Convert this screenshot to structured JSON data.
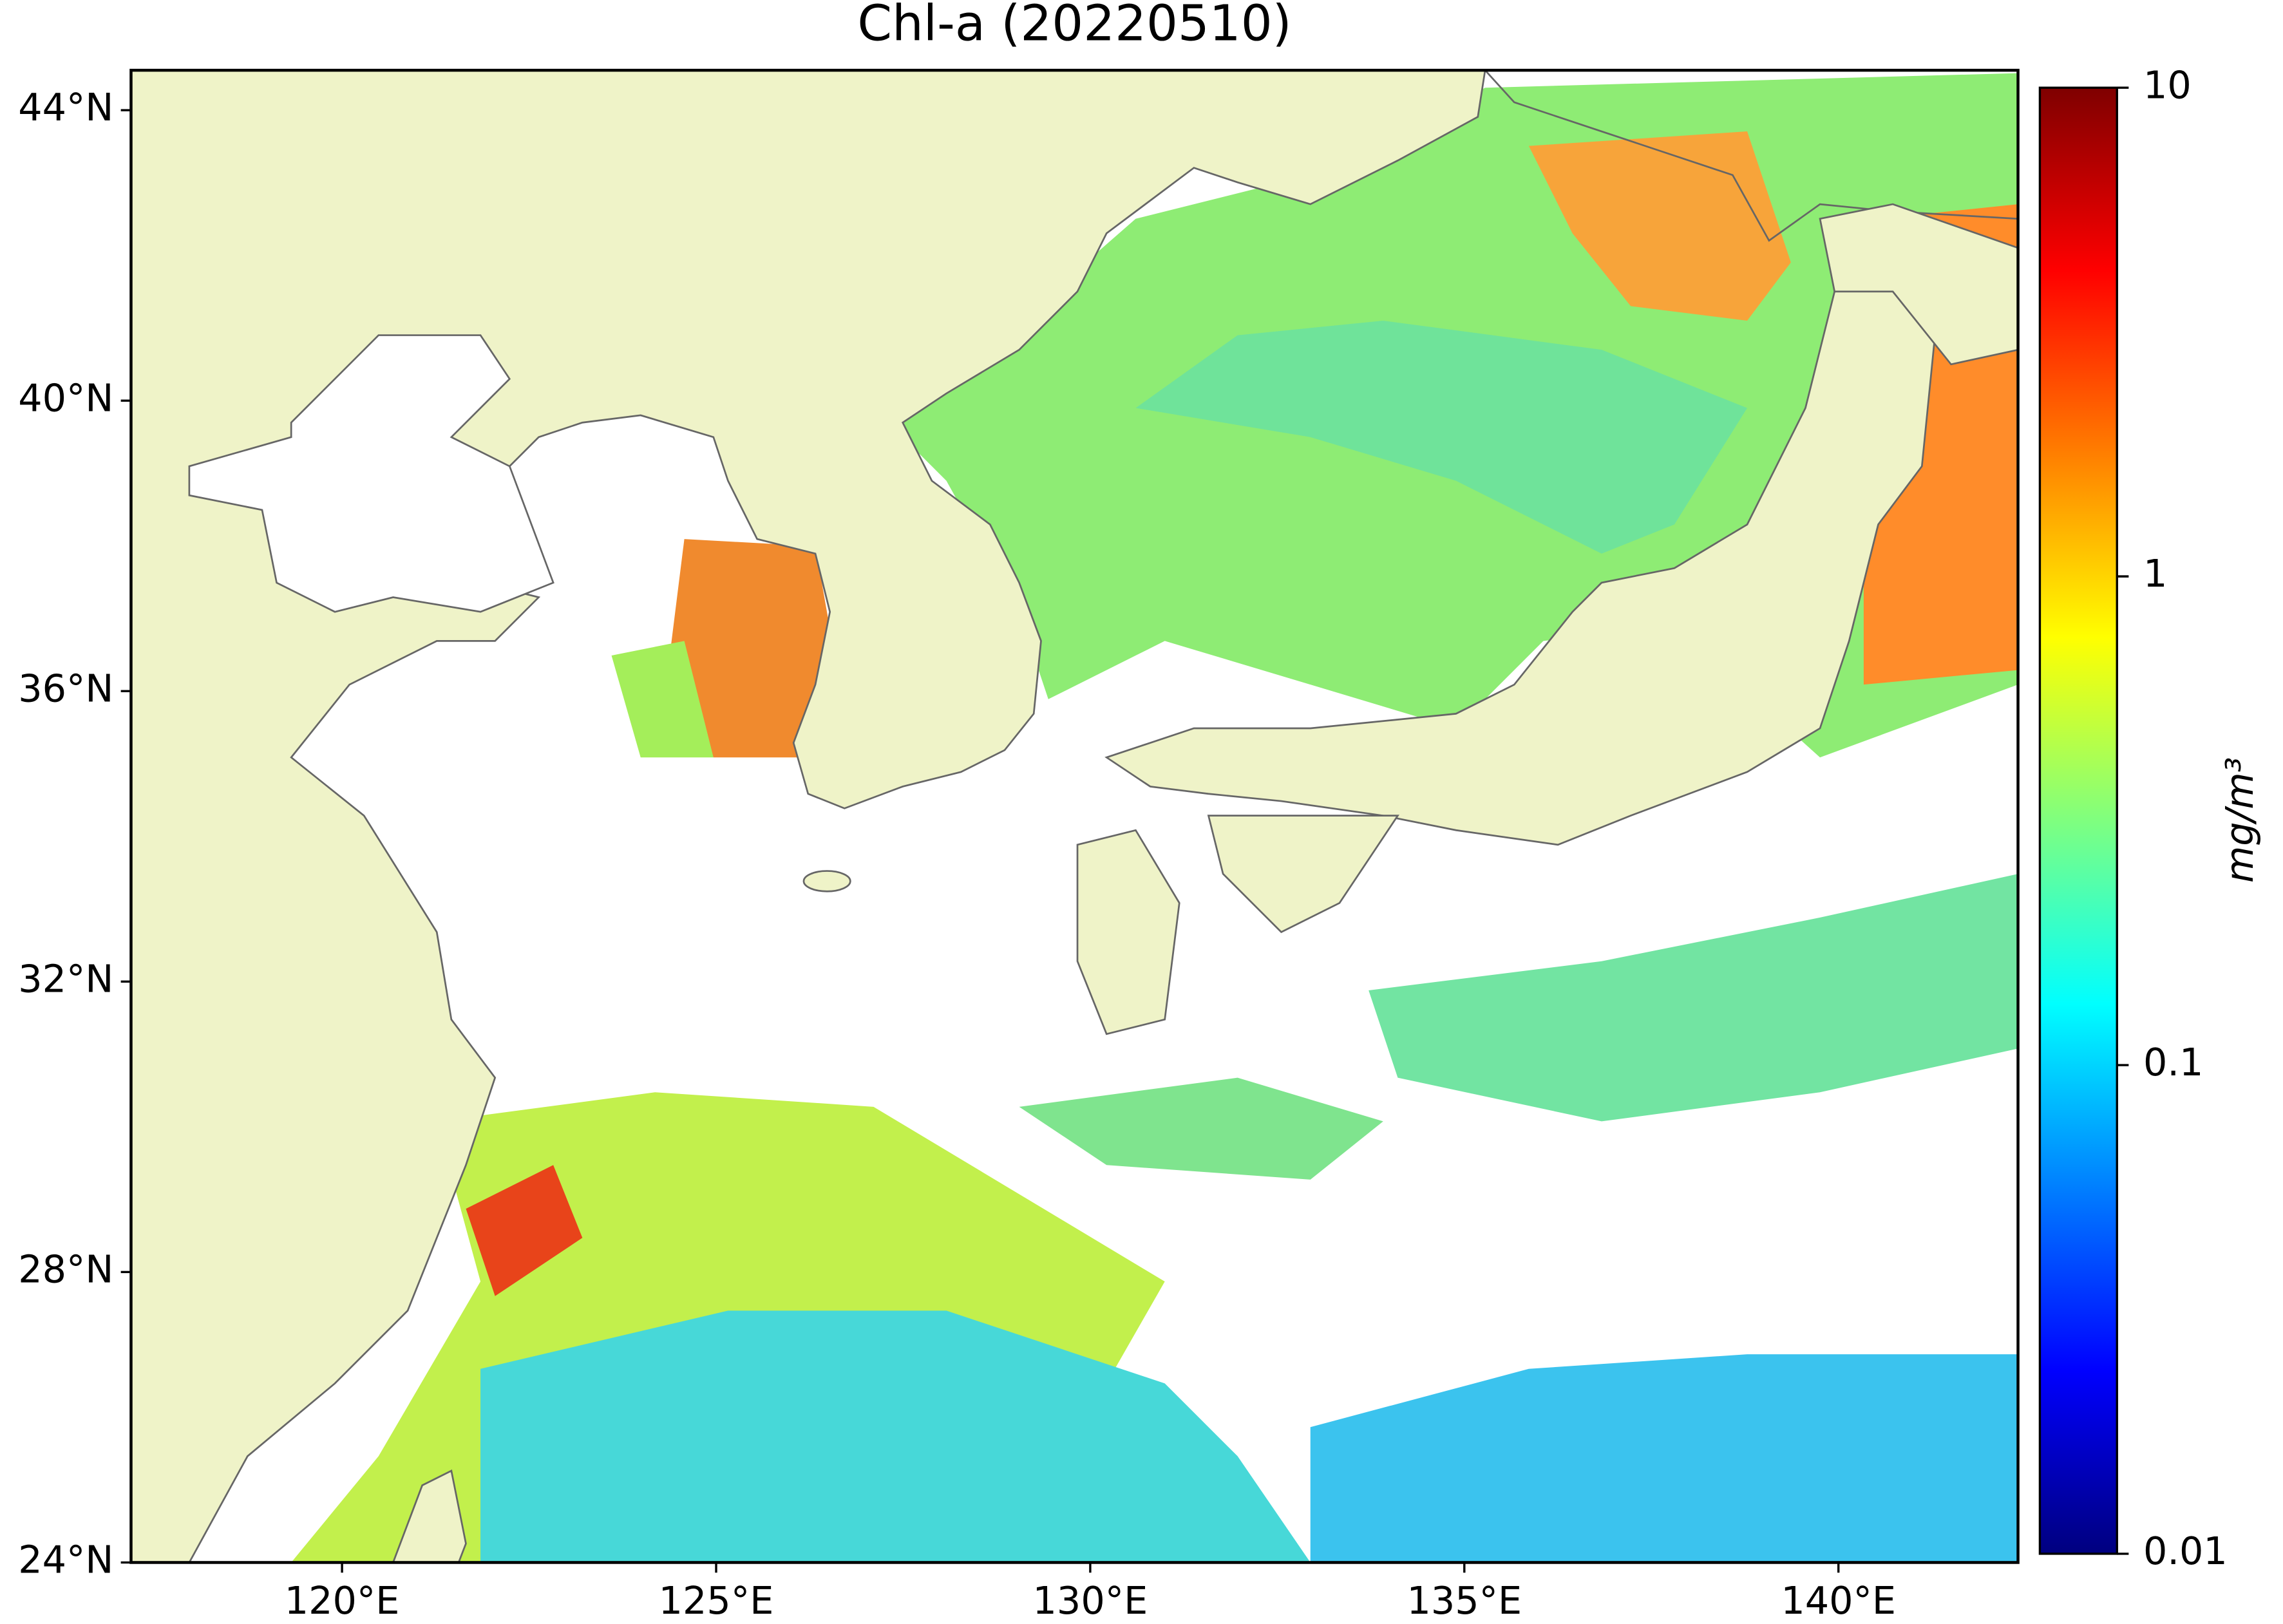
{
  "chart_data": {
    "type": "map",
    "title": "Chl-a (20220510)",
    "xlim": [
      117.18,
      142.4
    ],
    "ylim": [
      24,
      44.55
    ],
    "xticks": [
      {
        "value": 120,
        "label": "120°E"
      },
      {
        "value": 125,
        "label": "125°E"
      },
      {
        "value": 130,
        "label": "130°E"
      },
      {
        "value": 135,
        "label": "135°E"
      },
      {
        "value": 140,
        "label": "140°E"
      }
    ],
    "yticks": [
      {
        "value": 24,
        "label": "24°N"
      },
      {
        "value": 28,
        "label": "28°N"
      },
      {
        "value": 32,
        "label": "32°N"
      },
      {
        "value": 36,
        "label": "36°N"
      },
      {
        "value": 40,
        "label": "40°N"
      },
      {
        "value": 44,
        "label": "44°N"
      }
    ],
    "colorbar": {
      "label": "mg/m³",
      "log": true,
      "lim": [
        0.01,
        10
      ],
      "ticks": [
        0.01,
        0.1,
        1,
        10
      ],
      "colors": [
        "#00007f",
        "#0000ff",
        "#007fff",
        "#00ffff",
        "#7fff7f",
        "#ffff00",
        "#ff7f00",
        "#ff0000",
        "#7f0000"
      ]
    }
  }
}
